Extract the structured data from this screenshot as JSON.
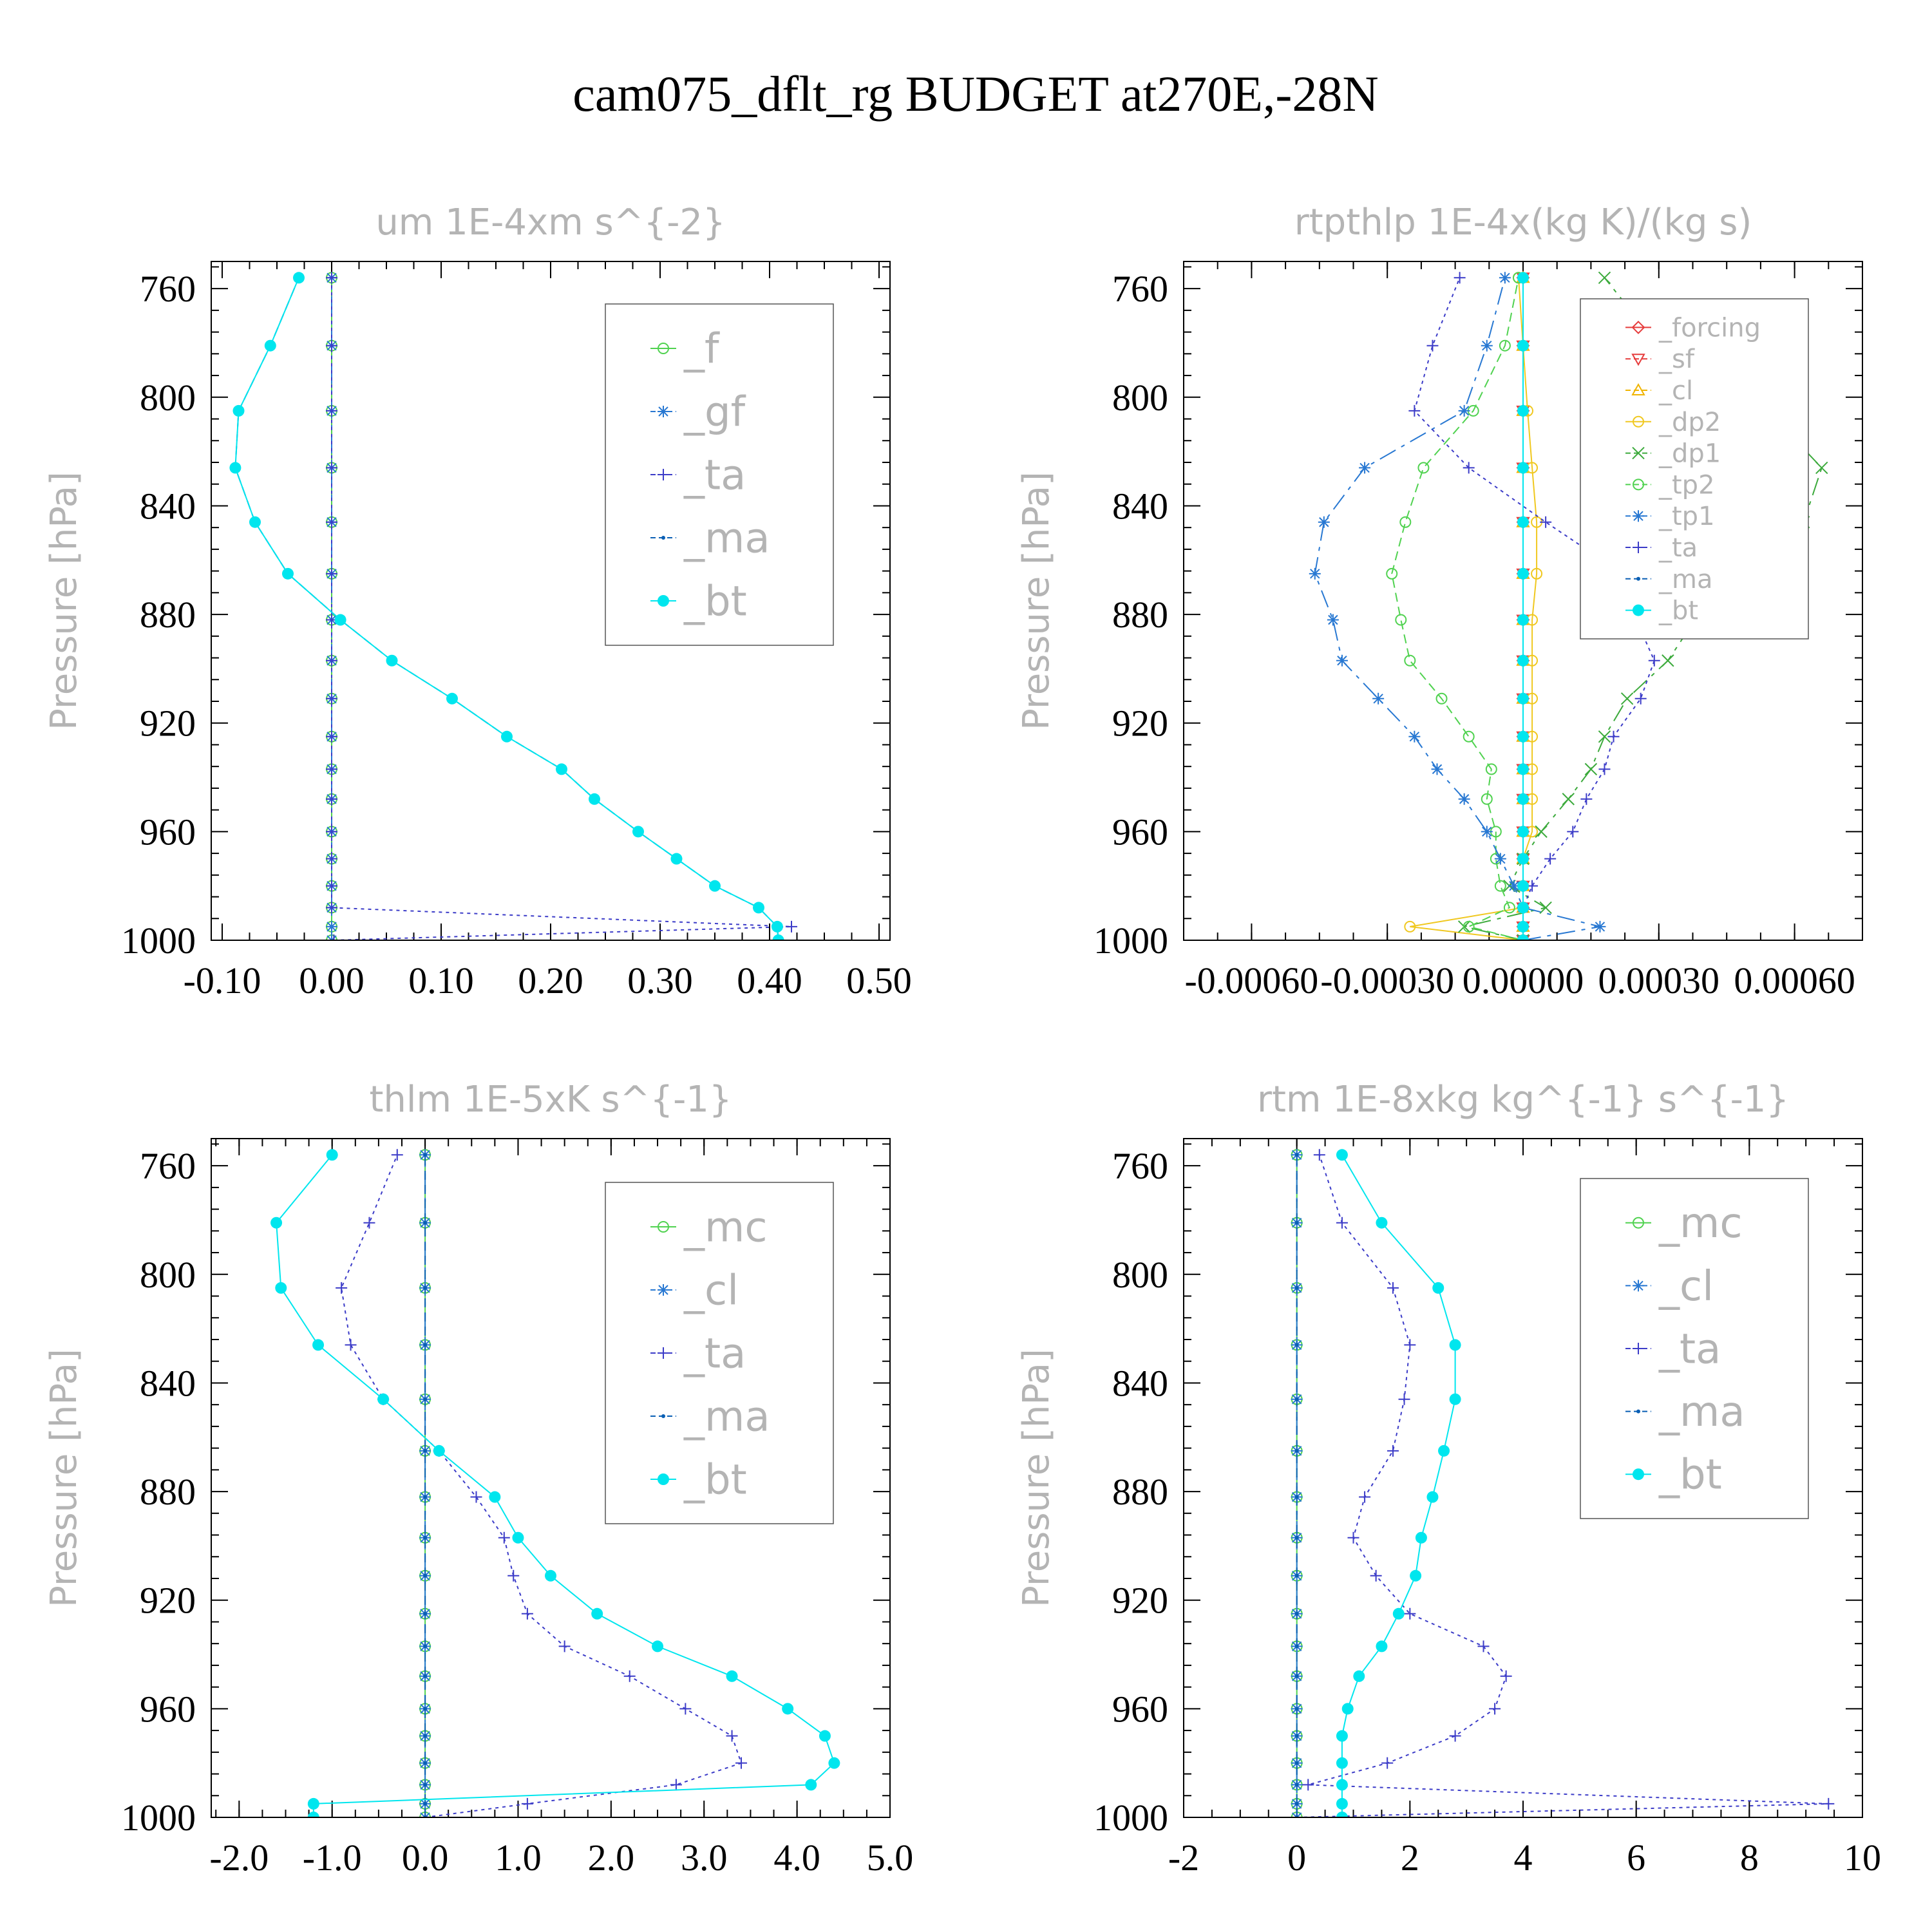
{
  "title": "cam075_dflt_rg  BUDGET at270E,-28N",
  "colors": {
    "frame": "#000000",
    "light_text": "#b4b4b4",
    "bt": "#00e6ee",
    "ma": "#0a5fb4",
    "ta": "#3c3cc8",
    "gf": "#2878d2",
    "f": "#50d250",
    "mc": "#50d250",
    "cl": "#2878d2",
    "forcing": "#e63c3c",
    "sf": "#e63c3c",
    "cl_rtp": "#f0b400",
    "dp2": "#f0c820",
    "dp1": "#3caa3c",
    "tp2": "#50d250",
    "tp1": "#2878d2"
  },
  "chart_data": [
    {
      "type": "line",
      "title": "um  1E-4xm s^{-2}",
      "ylabel": "Pressure [hPa]",
      "yticks": [
        760,
        800,
        840,
        880,
        920,
        960,
        1000
      ],
      "xticks": [
        "-0.10",
        "0.00",
        "0.10",
        "0.20",
        "0.30",
        "0.40",
        "0.50"
      ],
      "xlim": [
        -0.11,
        0.51
      ],
      "ylim": [
        1000,
        750
      ],
      "pressure": [
        1000,
        995,
        988,
        980,
        970,
        960,
        948,
        937,
        925,
        911,
        897,
        882,
        865,
        846,
        826,
        805,
        781,
        756
      ],
      "legend_fontsize": 64,
      "series": [
        {
          "name": "_f",
          "color": "#50d250",
          "marker": "circle-open",
          "dash": "",
          "values": [
            0,
            0,
            0,
            0,
            0,
            0,
            0,
            0,
            0,
            0,
            0,
            0,
            0,
            0,
            0,
            0,
            0,
            0
          ]
        },
        {
          "name": "_gf",
          "color": "#2878d2",
          "marker": "asterisk",
          "dash": "28,10,6,10",
          "values": [
            0,
            0,
            0,
            0,
            0,
            0,
            0,
            0,
            0,
            0,
            0,
            0,
            0,
            0,
            0,
            0,
            0,
            0
          ]
        },
        {
          "name": "_ta",
          "color": "#3c3cc8",
          "marker": "plus",
          "dash": "5,6",
          "values": [
            0.002,
            0.42,
            0.0,
            0.0,
            0.0,
            0.0,
            0.0,
            0.0,
            0.0,
            0.0,
            0.0,
            0.0,
            0.0,
            0.0,
            0.0,
            0.0,
            0.0,
            0.0
          ]
        },
        {
          "name": "_ma",
          "color": "#0a5fb4",
          "marker": "dot",
          "dash": "14,8",
          "values": [
            0.408,
            0.407,
            0.39,
            0.35,
            0.315,
            0.28,
            0.24,
            0.21,
            0.16,
            0.11,
            0.055,
            0.008,
            -0.04,
            -0.07,
            -0.088,
            -0.085,
            -0.056,
            -0.03
          ]
        },
        {
          "name": "_bt",
          "color": "#00e6ee",
          "marker": "filled",
          "dash": "",
          "values": [
            0.408,
            0.407,
            0.39,
            0.35,
            0.315,
            0.28,
            0.24,
            0.21,
            0.16,
            0.11,
            0.055,
            0.008,
            -0.04,
            -0.07,
            -0.088,
            -0.085,
            -0.056,
            -0.03
          ]
        }
      ]
    },
    {
      "type": "line",
      "title": "rtpthlp  1E-4x(kg K)/(kg s)",
      "ylabel": "Pressure [hPa]",
      "yticks": [
        760,
        800,
        840,
        880,
        920,
        960,
        1000
      ],
      "xticks": [
        "-0.00060",
        "-0.00030",
        "0.00000",
        "0.00030",
        "0.00060"
      ],
      "xlim": [
        -0.00075,
        0.00075
      ],
      "ylim": [
        1000,
        750
      ],
      "pressure": [
        1000,
        995,
        988,
        980,
        970,
        960,
        948,
        937,
        925,
        911,
        897,
        882,
        865,
        846,
        826,
        805,
        781,
        756
      ],
      "legend_fontsize": 40,
      "series": [
        {
          "name": "_forcing",
          "color": "#e63c3c",
          "marker": "diamond-open",
          "dash": "",
          "values": [
            0,
            0,
            0,
            0,
            0,
            0,
            0,
            0,
            0,
            0,
            0,
            0,
            0,
            0,
            0,
            0,
            0,
            0
          ]
        },
        {
          "name": "_sf",
          "color": "#e63c3c",
          "marker": "tri-down",
          "dash": "14,8",
          "values": [
            0,
            0,
            0,
            0,
            0,
            0,
            0,
            0,
            0,
            0,
            0,
            0,
            0,
            0,
            0,
            0,
            0,
            0
          ]
        },
        {
          "name": "_cl",
          "color": "#f0b400",
          "marker": "tri-up",
          "dash": "5,6",
          "values": [
            0,
            0,
            0,
            0,
            0,
            0,
            0,
            0,
            0,
            0,
            0,
            0,
            0,
            0,
            0,
            0,
            0,
            0
          ]
        },
        {
          "name": "_dp2",
          "color": "#f0c820",
          "marker": "circle-open",
          "dash": "",
          "values": [
            0.0,
            -0.00025,
            0.0,
            0.0,
            0.0,
            2e-05,
            2e-05,
            2e-05,
            2e-05,
            2e-05,
            2e-05,
            2e-05,
            3e-05,
            3e-05,
            2e-05,
            1e-05,
            0.0,
            -1e-05
          ]
        },
        {
          "name": "_dp1",
          "color": "#3caa3c",
          "marker": "cross",
          "dash": "28,10,6,10",
          "values": [
            0.0,
            -0.00013,
            5e-05,
            -3e-05,
            0.0,
            4e-05,
            0.0001,
            0.00015,
            0.00018,
            0.00023,
            0.00032,
            0.00038,
            0.00057,
            0.00062,
            0.00066,
            0.00054,
            0.0003,
            0.00018
          ]
        },
        {
          "name": "_tp2",
          "color": "#50d250",
          "marker": "circle-open",
          "dash": "14,8",
          "values": [
            0.0,
            -0.00012,
            -3e-05,
            -5e-05,
            -6e-05,
            -6e-05,
            -8e-05,
            -7e-05,
            -0.00012,
            -0.00018,
            -0.00025,
            -0.00027,
            -0.00029,
            -0.00026,
            -0.00022,
            -0.00011,
            -4e-05,
            -1e-05
          ]
        },
        {
          "name": "_tp1",
          "color": "#2878d2",
          "marker": "asterisk",
          "dash": "28,10,6,10",
          "values": [
            0.0,
            0.00017,
            0.0,
            -2e-05,
            -5e-05,
            -8e-05,
            -0.00013,
            -0.00019,
            -0.00024,
            -0.00032,
            -0.0004,
            -0.00042,
            -0.00046,
            -0.00044,
            -0.00035,
            -0.00013,
            -8e-05,
            -4e-05
          ]
        },
        {
          "name": "_ta",
          "color": "#3c3cc8",
          "marker": "plus",
          "dash": "5,6",
          "values": [
            0.0,
            0.0,
            0.0,
            2e-05,
            6e-05,
            0.00011,
            0.00014,
            0.00018,
            0.0002,
            0.00026,
            0.00029,
            0.00025,
            0.00022,
            5e-05,
            -0.00012,
            -0.00024,
            -0.0002,
            -0.00014
          ]
        },
        {
          "name": "_ma",
          "color": "#0a5fb4",
          "marker": "dot",
          "dash": "14,8",
          "values": [
            0,
            0,
            0,
            0,
            0,
            0,
            0,
            0,
            0,
            0,
            0,
            0,
            0,
            0,
            0,
            0,
            0,
            0
          ]
        },
        {
          "name": "_bt",
          "color": "#00e6ee",
          "marker": "filled",
          "dash": "",
          "values": [
            0,
            0,
            0,
            0,
            0,
            0,
            0,
            0,
            0,
            0,
            0,
            0,
            0,
            0,
            0,
            0,
            0,
            0
          ]
        }
      ]
    },
    {
      "type": "line",
      "title": "thlm  1E-5xK s^{-1}",
      "ylabel": "Pressure [hPa]",
      "yticks": [
        760,
        800,
        840,
        880,
        920,
        960,
        1000
      ],
      "xticks": [
        "-2.0",
        "-1.0",
        "0.0",
        "1.0",
        "2.0",
        "3.0",
        "4.0",
        "5.0"
      ],
      "xlim": [
        -2.3,
        5.0
      ],
      "ylim": [
        1000,
        750
      ],
      "pressure": [
        1000,
        995,
        988,
        980,
        970,
        960,
        948,
        937,
        925,
        911,
        897,
        882,
        865,
        846,
        826,
        805,
        781,
        756
      ],
      "legend_fontsize": 64,
      "series": [
        {
          "name": "_mc",
          "color": "#50d250",
          "marker": "circle-open",
          "dash": "",
          "values": [
            0,
            0,
            0,
            0,
            0,
            0,
            0,
            0,
            0,
            0,
            0,
            0,
            0,
            0,
            0,
            0,
            0,
            0
          ]
        },
        {
          "name": "_cl",
          "color": "#2878d2",
          "marker": "asterisk",
          "dash": "28,10,6,10",
          "values": [
            0,
            0,
            0,
            0,
            0,
            0,
            0,
            0,
            0,
            0,
            0,
            0,
            0,
            0,
            0,
            0,
            0,
            0
          ]
        },
        {
          "name": "_ta",
          "color": "#3c3cc8",
          "marker": "plus",
          "dash": "5,6",
          "values": [
            0.0,
            1.1,
            2.7,
            3.4,
            3.3,
            2.8,
            2.2,
            1.5,
            1.1,
            0.95,
            0.85,
            0.55,
            0.15,
            -0.45,
            -0.8,
            -0.9,
            -0.6,
            -0.3
          ]
        },
        {
          "name": "_ma",
          "color": "#0a5fb4",
          "marker": "dot",
          "dash": "14,8",
          "values": [
            0,
            0,
            0,
            0,
            0,
            0,
            0,
            0,
            0,
            0,
            0,
            0,
            0,
            0,
            0,
            0,
            0,
            0
          ]
        },
        {
          "name": "_bt",
          "color": "#00e6ee",
          "marker": "filled",
          "dash": "",
          "values": [
            -1.2,
            -1.2,
            4.15,
            4.4,
            4.3,
            3.9,
            3.3,
            2.5,
            1.85,
            1.35,
            1.0,
            0.75,
            0.15,
            -0.45,
            -1.15,
            -1.55,
            -1.6,
            -1.0
          ]
        }
      ]
    },
    {
      "type": "line",
      "title": "rtm  1E-8xkg kg^{-1} s^{-1}",
      "ylabel": "Pressure [hPa]",
      "yticks": [
        760,
        800,
        840,
        880,
        920,
        960,
        1000
      ],
      "xticks": [
        "-2",
        "0",
        "2",
        "4",
        "6",
        "8",
        "10"
      ],
      "xlim": [
        -2.0,
        10.0
      ],
      "ylim": [
        1000,
        750
      ],
      "pressure": [
        1000,
        995,
        988,
        980,
        970,
        960,
        948,
        937,
        925,
        911,
        897,
        882,
        865,
        846,
        826,
        805,
        781,
        756
      ],
      "legend_fontsize": 64,
      "series": [
        {
          "name": "_mc",
          "color": "#50d250",
          "marker": "circle-open",
          "dash": "",
          "values": [
            0,
            0,
            0,
            0,
            0,
            0,
            0,
            0,
            0,
            0,
            0,
            0,
            0,
            0,
            0,
            0,
            0,
            0
          ]
        },
        {
          "name": "_cl",
          "color": "#2878d2",
          "marker": "asterisk",
          "dash": "28,10,6,10",
          "values": [
            0,
            0,
            0,
            0,
            0,
            0,
            0,
            0,
            0,
            0,
            0,
            0,
            0,
            0,
            0,
            0,
            0,
            0
          ]
        },
        {
          "name": "_ta",
          "color": "#3c3cc8",
          "marker": "plus",
          "dash": "5,6",
          "values": [
            0.0,
            9.4,
            0.2,
            1.6,
            2.8,
            3.5,
            3.7,
            3.3,
            2.0,
            1.4,
            1.0,
            1.2,
            1.7,
            1.9,
            2.0,
            1.7,
            0.8,
            0.4
          ]
        },
        {
          "name": "_ma",
          "color": "#0a5fb4",
          "marker": "dot",
          "dash": "14,8",
          "values": [
            0,
            0,
            0,
            0,
            0,
            0,
            0,
            0,
            0,
            0,
            0,
            0,
            0,
            0,
            0,
            0,
            0,
            0
          ]
        },
        {
          "name": "_bt",
          "color": "#00e6ee",
          "marker": "filled",
          "dash": "",
          "values": [
            0.8,
            0.8,
            0.8,
            0.8,
            0.8,
            0.9,
            1.1,
            1.5,
            1.8,
            2.1,
            2.2,
            2.4,
            2.6,
            2.8,
            2.8,
            2.5,
            1.5,
            0.8
          ]
        }
      ]
    }
  ]
}
